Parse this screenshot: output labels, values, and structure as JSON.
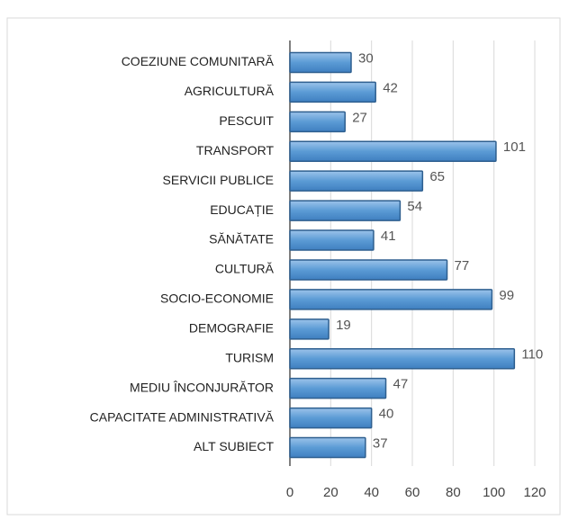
{
  "chart_data": {
    "type": "bar",
    "orientation": "horizontal",
    "categories": [
      "COEZIUNE COMUNITARĂ",
      "AGRICULTURĂ",
      "PESCUIT",
      "TRANSPORT",
      "SERVICII PUBLICE",
      "EDUCAȚIE",
      "SĂNĂTATE",
      "CULTURĂ",
      "SOCIO-ECONOMIE",
      "DEMOGRAFIE",
      "TURISM",
      "MEDIU ÎNCONJURĂTOR",
      "CAPACITATE ADMINISTRATIVĂ",
      "ALT SUBIECT"
    ],
    "values": [
      30,
      42,
      27,
      101,
      65,
      54,
      41,
      77,
      99,
      19,
      110,
      47,
      40,
      37
    ],
    "color": "#5b9bd5",
    "xlim": [
      0,
      120
    ],
    "xticks": [
      0,
      20,
      40,
      60,
      80,
      100,
      120
    ],
    "grid": true
  }
}
